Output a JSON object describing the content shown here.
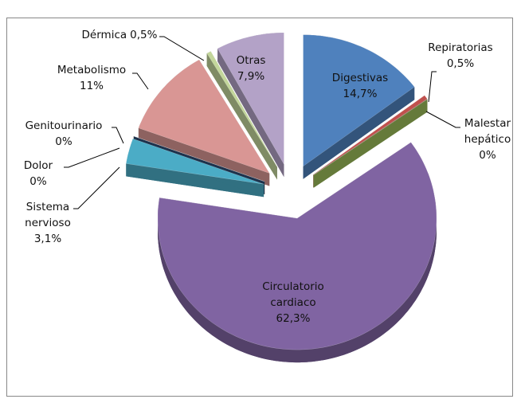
{
  "chart_data": {
    "type": "pie3d",
    "categories": [
      "Digestivas",
      "Repiratorias",
      "Malestar hepático",
      "Circulatorio cardiaco",
      "Sistema nervioso",
      "Dolor",
      "Genitourinario",
      "Metabolismo",
      "Dérmica",
      "Otras"
    ],
    "values": [
      14.7,
      0.5,
      0,
      62.3,
      3.1,
      0,
      0,
      11,
      0.5,
      7.9
    ],
    "value_labels": [
      "14,7%",
      "0,5%",
      "0%",
      "62,3%",
      "3,1%",
      "0%",
      "0%",
      "11%",
      "0,5%",
      "7,9%"
    ],
    "colors": [
      "#4f81bd",
      "#c0504d",
      "#9bbb59",
      "#8064a2",
      "#4bacc6",
      "#f79646",
      "#2c4d75",
      "#d99694",
      "#c3d69b",
      "#b3a2c7"
    ]
  }
}
